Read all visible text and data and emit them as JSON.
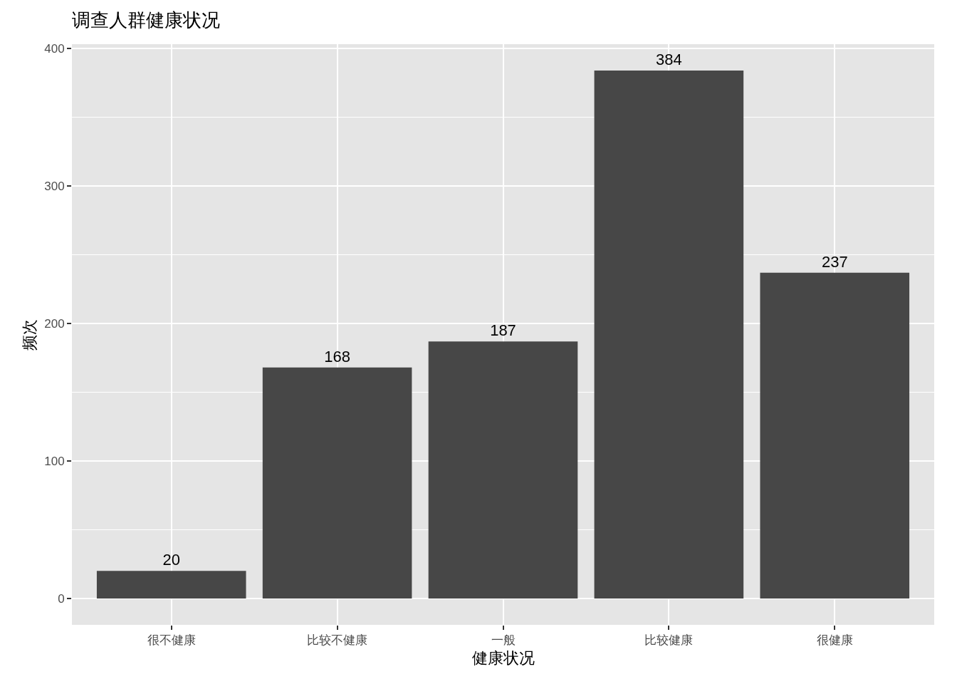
{
  "chart_data": {
    "type": "bar",
    "title": "调查人群健康状况",
    "xlabel": "健康状况",
    "ylabel": "频次",
    "categories": [
      "很不健康",
      "比较不健康",
      "一般",
      "比较健康",
      "很健康"
    ],
    "values": [
      20,
      168,
      187,
      384,
      237
    ],
    "color": "#474747",
    "ylim": [
      -19.2,
      403.2
    ],
    "yticks": [
      0,
      100,
      200,
      300,
      400
    ],
    "grid": true,
    "data_labels": true
  }
}
